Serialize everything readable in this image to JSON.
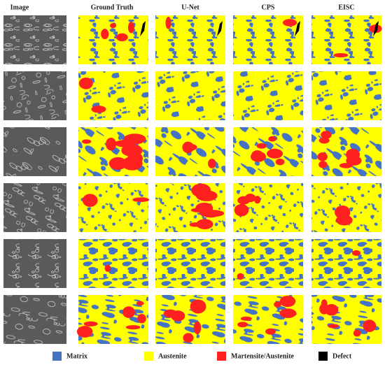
{
  "columns": [
    "Image",
    "Ground Truth",
    "U-Net",
    "CPS",
    "EISC"
  ],
  "legend": [
    {
      "label": "Matrix",
      "color": "#4472c4"
    },
    {
      "label": "Austenite",
      "color": "#ffff00"
    },
    {
      "label": "Martensite/Austenite",
      "color": "#ff2020"
    },
    {
      "label": "Defect",
      "color": "#000000"
    }
  ]
}
